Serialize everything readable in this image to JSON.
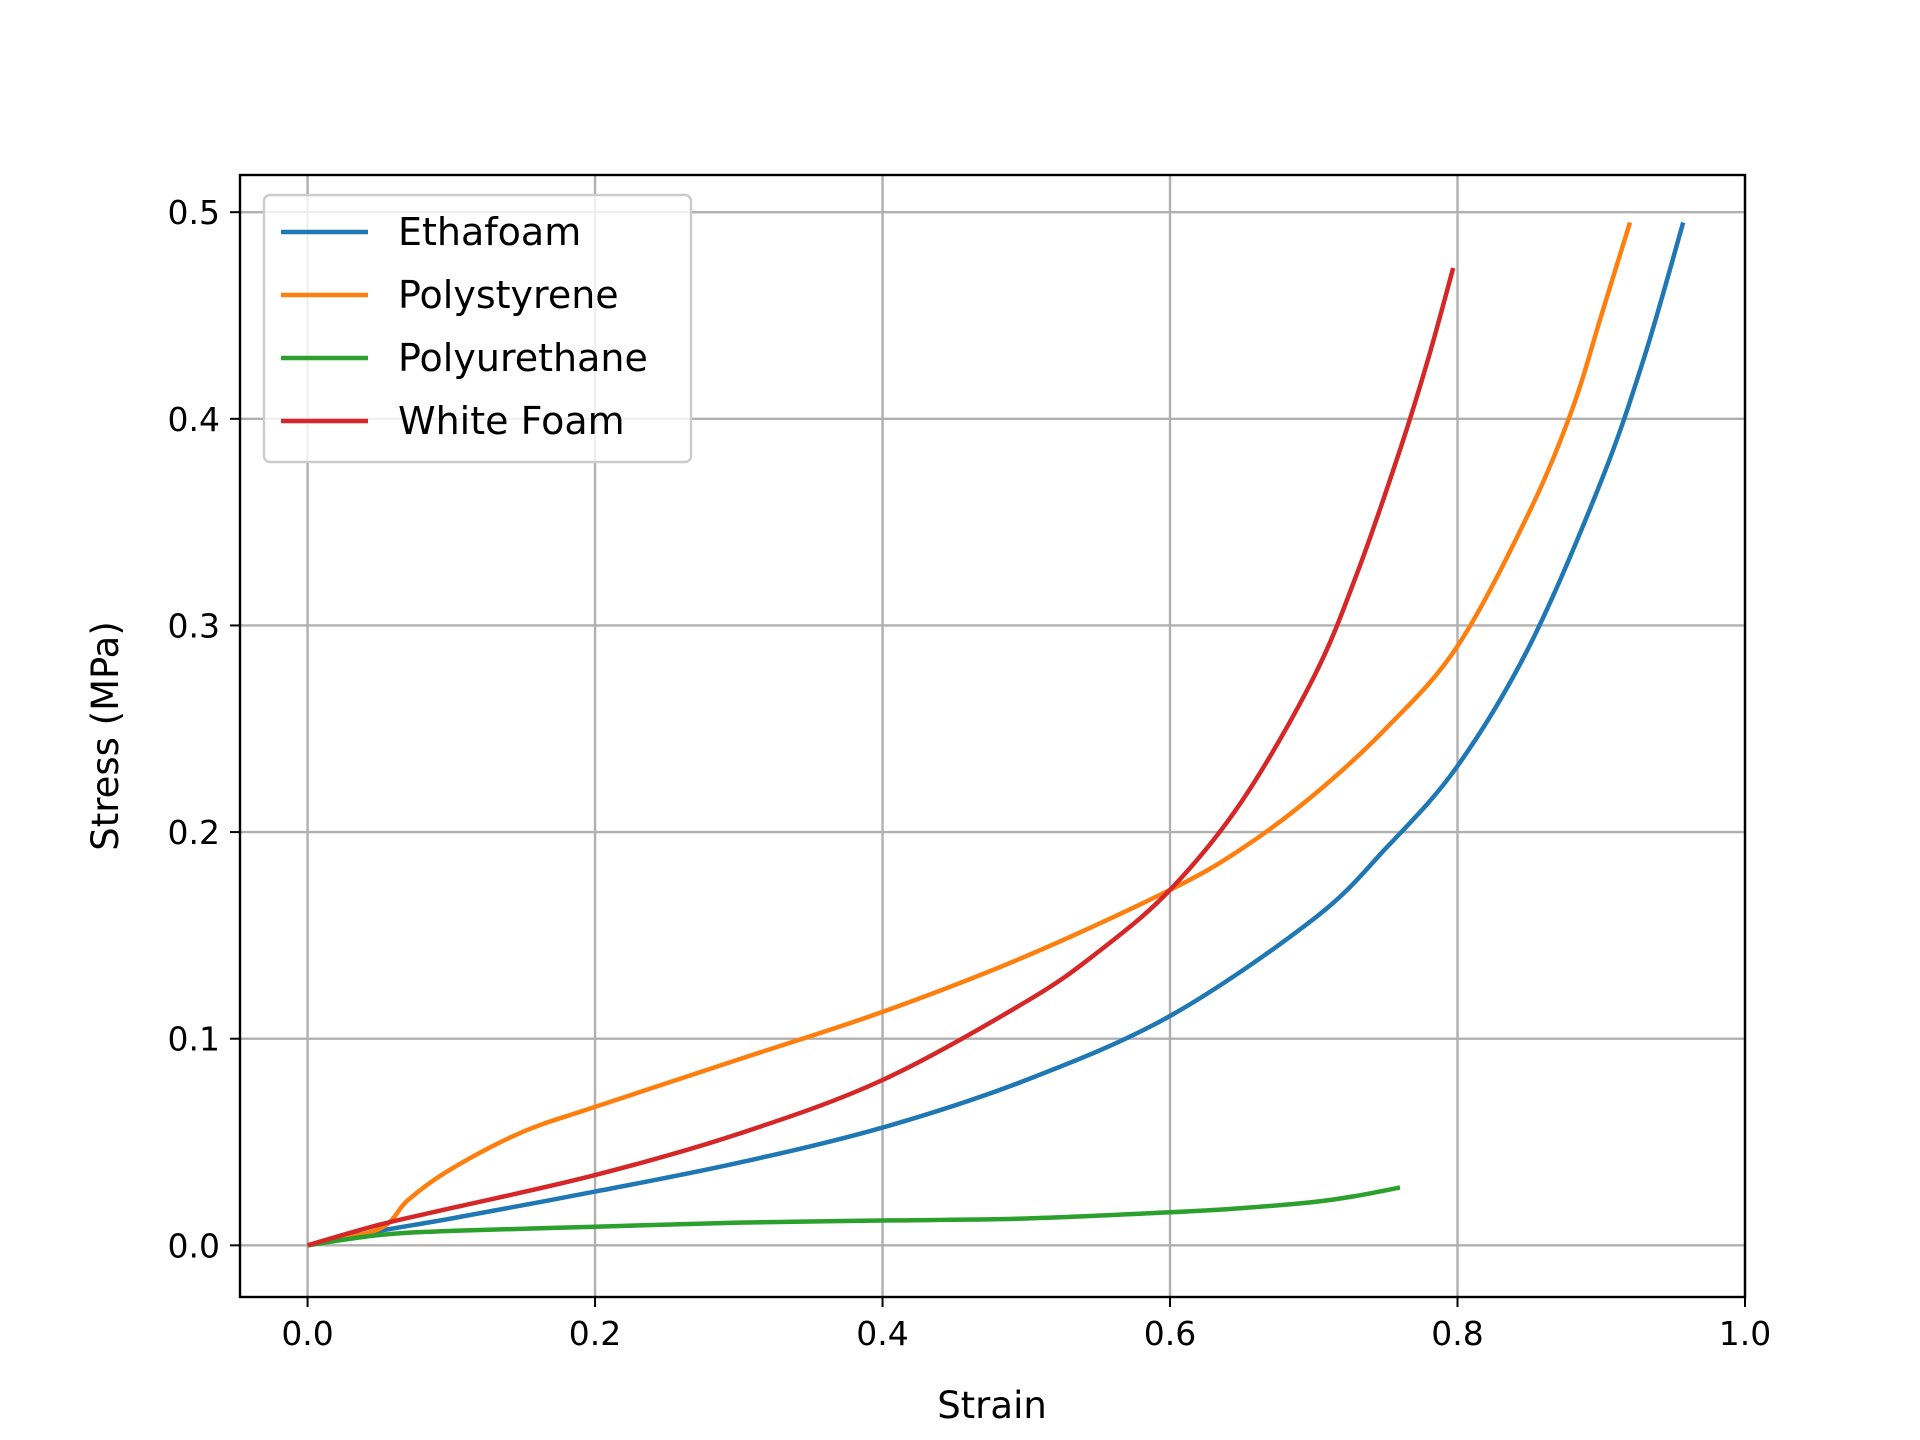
{
  "chart_data": {
    "type": "line",
    "title": "",
    "xlabel": "Strain",
    "ylabel": "Stress (MPa)",
    "xlim": [
      -0.047,
      1.0
    ],
    "ylim": [
      -0.025,
      0.518
    ],
    "x_ticks": [
      "0.0",
      "0.2",
      "0.4",
      "0.6",
      "0.8",
      "1.0"
    ],
    "y_ticks": [
      "0.0",
      "0.1",
      "0.2",
      "0.3",
      "0.4",
      "0.5"
    ],
    "grid": true,
    "legend_position": "upper-left",
    "series": [
      {
        "name": "Ethafoam",
        "color": "#1f77b4",
        "x": [
          0,
          0.05,
          0.1,
          0.2,
          0.3,
          0.4,
          0.5,
          0.6,
          0.7,
          0.75,
          0.8,
          0.85,
          0.9,
          0.93,
          0.957
        ],
        "y": [
          0,
          0.007,
          0.013,
          0.026,
          0.04,
          0.057,
          0.08,
          0.111,
          0.158,
          0.192,
          0.232,
          0.29,
          0.37,
          0.43,
          0.495
        ]
      },
      {
        "name": "Polystyrene",
        "color": "#ff7f0e",
        "x": [
          0,
          0.05,
          0.07,
          0.1,
          0.15,
          0.2,
          0.3,
          0.4,
          0.5,
          0.6,
          0.65,
          0.7,
          0.75,
          0.8,
          0.85,
          0.88,
          0.9,
          0.92
        ],
        "y": [
          0,
          0.008,
          0.022,
          0.037,
          0.055,
          0.067,
          0.09,
          0.113,
          0.14,
          0.172,
          0.192,
          0.218,
          0.25,
          0.29,
          0.355,
          0.405,
          0.45,
          0.495
        ]
      },
      {
        "name": "Polyurethane",
        "color": "#2ca02c",
        "x": [
          0,
          0.05,
          0.1,
          0.2,
          0.3,
          0.4,
          0.5,
          0.6,
          0.65,
          0.7,
          0.73,
          0.76
        ],
        "y": [
          0,
          0.005,
          0.007,
          0.009,
          0.011,
          0.012,
          0.013,
          0.016,
          0.018,
          0.021,
          0.024,
          0.028
        ]
      },
      {
        "name": "White Foam",
        "color": "#d62728",
        "x": [
          0,
          0.05,
          0.1,
          0.2,
          0.3,
          0.4,
          0.5,
          0.55,
          0.6,
          0.65,
          0.7,
          0.73,
          0.76,
          0.78,
          0.797
        ],
        "y": [
          0,
          0.01,
          0.018,
          0.034,
          0.054,
          0.08,
          0.118,
          0.142,
          0.172,
          0.215,
          0.275,
          0.325,
          0.385,
          0.43,
          0.473
        ]
      }
    ]
  }
}
